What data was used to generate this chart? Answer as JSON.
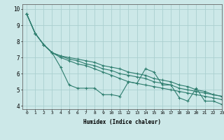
{
  "xlabel": "Humidex (Indice chaleur)",
  "bg_color": "#cce8e8",
  "line_color": "#2d7d6e",
  "grid_color": "#aacfcf",
  "xlim": [
    -0.5,
    23
  ],
  "ylim": [
    3.8,
    10.3
  ],
  "xticks": [
    0,
    1,
    2,
    3,
    4,
    5,
    6,
    7,
    8,
    9,
    10,
    11,
    12,
    13,
    14,
    15,
    16,
    17,
    18,
    19,
    20,
    21,
    22,
    23
  ],
  "yticks": [
    4,
    5,
    6,
    7,
    8,
    9,
    10
  ],
  "lines": [
    [
      9.7,
      8.5,
      7.8,
      7.3,
      6.4,
      5.3,
      5.1,
      5.1,
      5.1,
      4.7,
      4.7,
      4.6,
      5.5,
      5.4,
      6.3,
      6.1,
      5.3,
      5.3,
      4.5,
      4.3,
      5.1,
      4.3,
      4.3,
      4.1
    ],
    [
      9.7,
      8.5,
      7.8,
      7.3,
      7.1,
      7.0,
      6.9,
      6.8,
      6.7,
      6.5,
      6.4,
      6.3,
      6.1,
      6.0,
      5.9,
      5.7,
      5.6,
      5.5,
      5.3,
      5.2,
      5.0,
      4.9,
      4.7,
      4.6
    ],
    [
      9.7,
      8.5,
      7.8,
      7.3,
      7.0,
      6.8,
      6.6,
      6.5,
      6.3,
      6.1,
      5.9,
      5.7,
      5.5,
      5.4,
      5.3,
      5.2,
      5.1,
      5.0,
      4.9,
      4.8,
      4.7,
      4.6,
      4.5,
      4.4
    ],
    [
      9.7,
      8.5,
      7.8,
      7.3,
      7.1,
      6.9,
      6.8,
      6.6,
      6.5,
      6.3,
      6.2,
      6.0,
      5.9,
      5.8,
      5.7,
      5.5,
      5.4,
      5.3,
      5.1,
      5.0,
      4.9,
      4.8,
      4.7,
      4.6
    ]
  ]
}
